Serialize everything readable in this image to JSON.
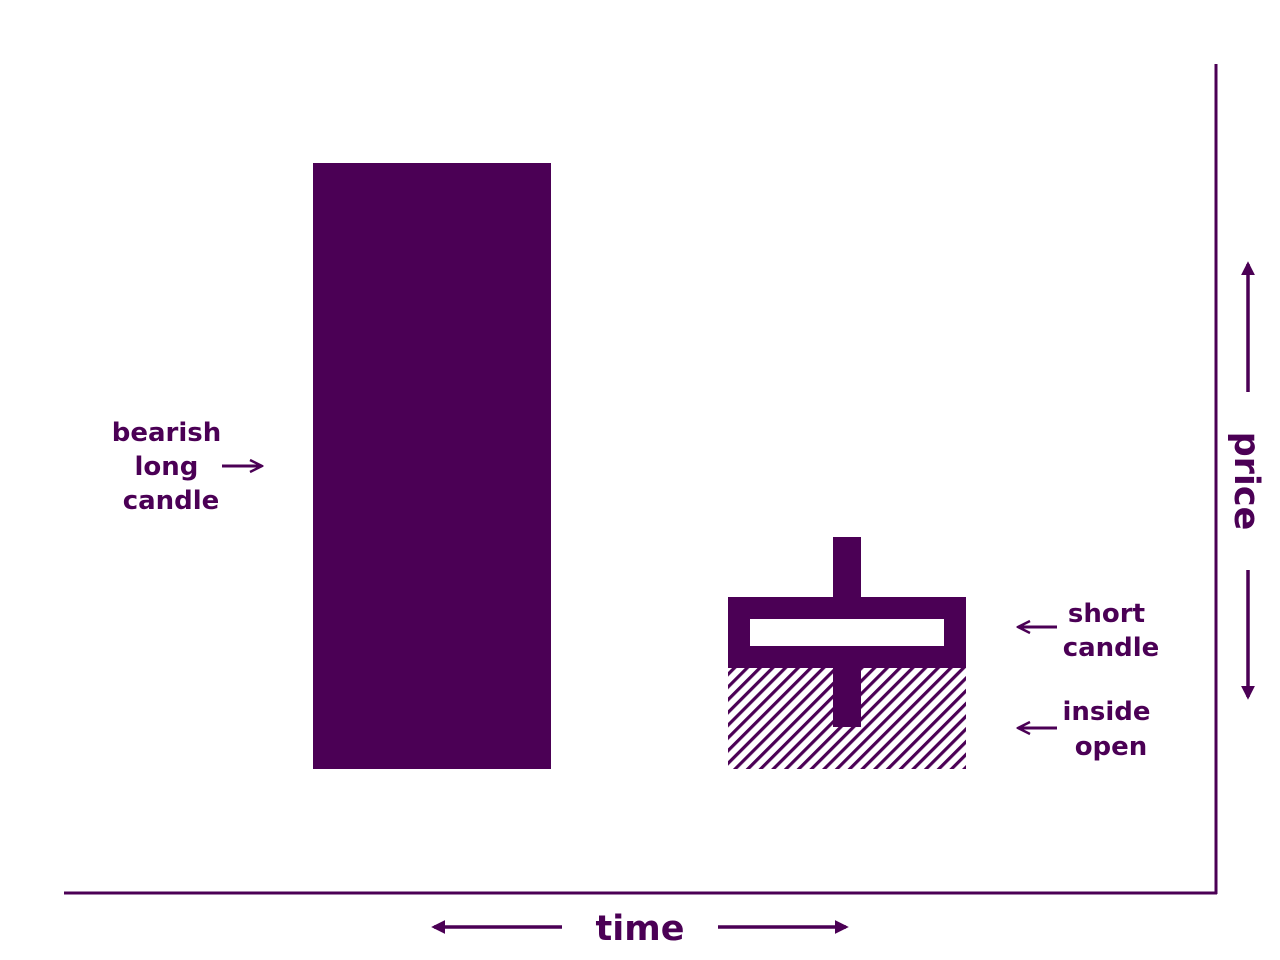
{
  "colors": {
    "primary": "#4b0055",
    "background": "#ffffff"
  },
  "labels": {
    "bearish_long_candle": [
      "bearish",
      "long",
      "candle"
    ],
    "short_candle": [
      "short",
      "candle"
    ],
    "inside_open": [
      "inside",
      "open"
    ],
    "x_axis": "time",
    "y_axis": "price"
  }
}
